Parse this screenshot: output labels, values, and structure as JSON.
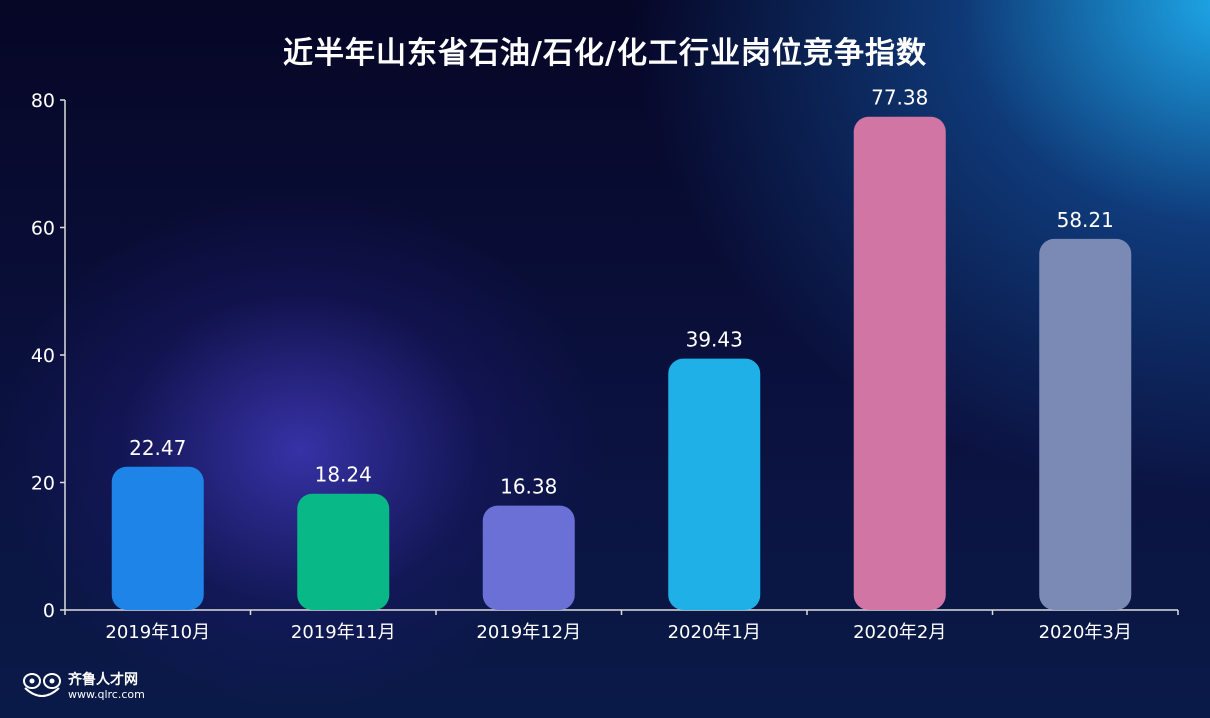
{
  "chart_data": {
    "type": "bar",
    "title": "近半年山东省石油/石化/化工行业岗位竞争指数",
    "categories": [
      "2019年10月",
      "2019年11月",
      "2019年12月",
      "2020年1月",
      "2020年2月",
      "2020年3月"
    ],
    "values": [
      22.47,
      18.24,
      16.38,
      39.43,
      77.38,
      58.21
    ],
    "colors": [
      "#1f84e8",
      "#08b886",
      "#6a70d6",
      "#1fb0e8",
      "#d176a4",
      "#7b8ab4"
    ],
    "ylim": [
      0,
      80
    ],
    "yticks": [
      0,
      20,
      40,
      60,
      80
    ],
    "xlabel": "",
    "ylabel": "",
    "grid": false,
    "data_labels": true
  },
  "logo": {
    "name": "齐鲁人才网",
    "url": "www.qlrc.com"
  }
}
